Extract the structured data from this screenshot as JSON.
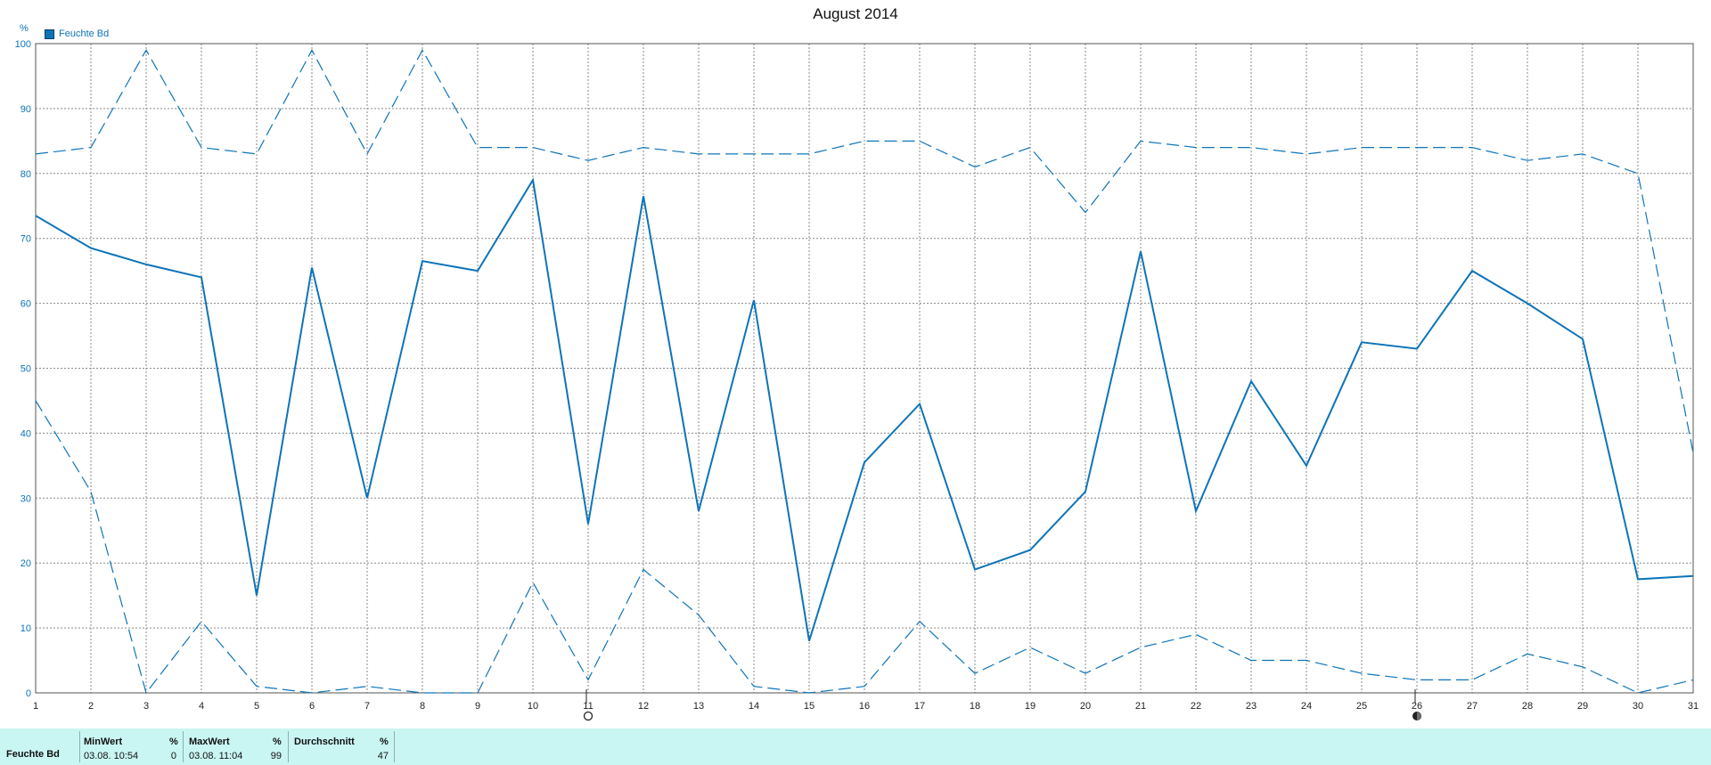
{
  "title": "August 2014",
  "unit": "%",
  "legend": {
    "label": "Feuchte Bd",
    "color": "#0e74b8"
  },
  "chart_data": {
    "type": "line",
    "title": "August 2014",
    "xlabel": "",
    "ylabel": "%",
    "x": [
      1,
      2,
      3,
      4,
      5,
      6,
      7,
      8,
      9,
      10,
      11,
      12,
      13,
      14,
      15,
      16,
      17,
      18,
      19,
      20,
      21,
      22,
      23,
      24,
      25,
      26,
      27,
      28,
      29,
      30,
      31
    ],
    "xlim": [
      1,
      31
    ],
    "ylim": [
      0,
      100
    ],
    "yticks": [
      0,
      10,
      20,
      30,
      40,
      50,
      60,
      70,
      80,
      90,
      100
    ],
    "grid": true,
    "legend_position": "top-left",
    "series": [
      {
        "name": "Feuchte Bd",
        "style": "solid",
        "values": [
          73.5,
          68.5,
          66,
          64,
          15,
          65.5,
          30,
          66.5,
          65,
          79,
          26,
          76.5,
          28,
          60.5,
          8,
          35.5,
          44.5,
          19,
          22,
          31,
          68,
          28,
          48,
          35,
          54,
          53,
          65,
          60,
          54.5,
          17.5,
          18
        ]
      },
      {
        "style": "dashed",
        "values": [
          83,
          84,
          99,
          84,
          83,
          99,
          83,
          99,
          84,
          84,
          82,
          84,
          83,
          83,
          83,
          85,
          85,
          81,
          84,
          74,
          85,
          84,
          84,
          83,
          84,
          84,
          84,
          82,
          83,
          80,
          37
        ]
      },
      {
        "style": "dashed",
        "values": [
          45,
          31,
          0,
          11,
          1,
          0,
          1,
          0,
          0,
          17,
          2,
          19,
          12,
          1,
          0,
          1,
          11,
          3,
          7,
          3,
          7,
          9,
          5,
          5,
          3,
          2,
          2,
          6,
          4,
          0,
          2
        ]
      }
    ],
    "markers": [
      {
        "x": 11,
        "symbol": "new-moon"
      },
      {
        "x": 26,
        "symbol": "full-moon"
      }
    ]
  },
  "stats": {
    "row_label": "Feuchte Bd",
    "columns": [
      {
        "header": "MinWert",
        "unit": "%",
        "time": "03.08.  10:54",
        "value": "0"
      },
      {
        "header": "MaxWert",
        "unit": "%",
        "time": "03.08.  11:04",
        "value": "99"
      },
      {
        "header": "Durchschnitt",
        "unit": "%",
        "time": "",
        "value": "47"
      }
    ]
  }
}
